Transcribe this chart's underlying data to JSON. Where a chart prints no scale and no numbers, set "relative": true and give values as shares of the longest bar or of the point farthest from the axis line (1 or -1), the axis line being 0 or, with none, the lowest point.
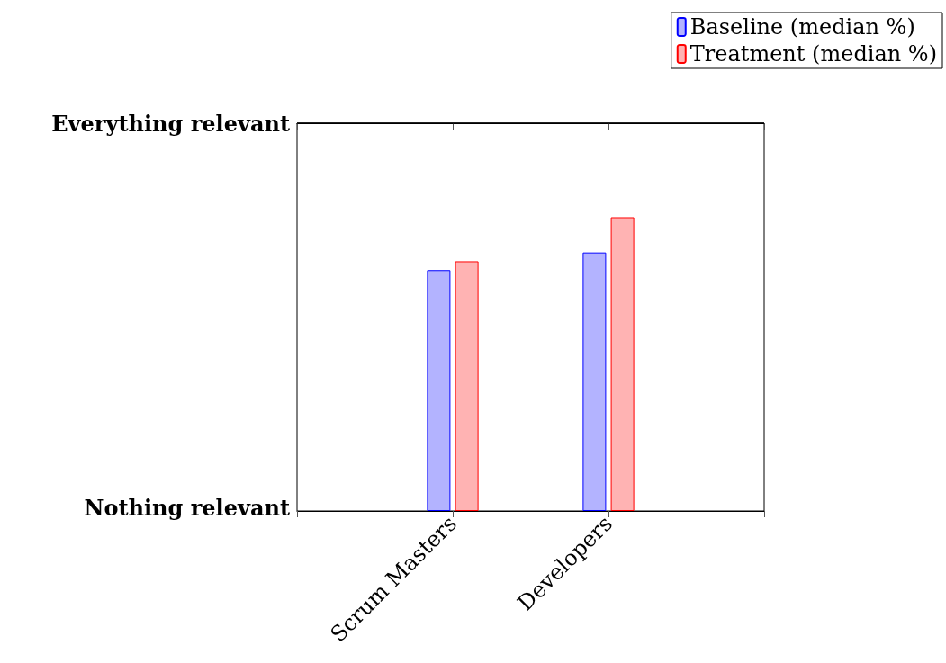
{
  "chart_data": {
    "type": "bar",
    "categories": [
      null,
      "Scrum Masters",
      "Developers",
      null
    ],
    "series": [
      {
        "name": "Baseline (median %)",
        "color": "#b3b3ff",
        "values": [
          null,
          0.82,
          0.88,
          null
        ]
      },
      {
        "name": "Treatment (median %)",
        "color": "#ffb3b3",
        "values": [
          null,
          0.85,
          1,
          null
        ]
      }
    ],
    "relative": true,
    "ref_lines": [
      {
        "axis": "y",
        "value": 1.32,
        "label": "Everything relevant",
        "color": "#000000"
      }
    ],
    "annotations": [
      "Nothing relevant"
    ],
    "legend": "top right"
  }
}
